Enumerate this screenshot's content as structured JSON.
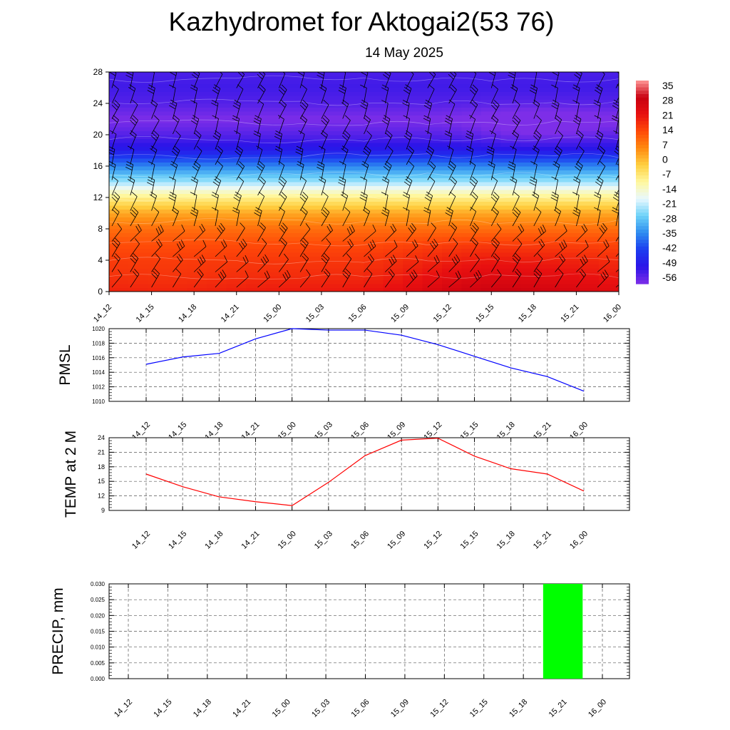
{
  "title": "Kazhydromet for Aktogai2(53 76)",
  "subtitle": "14 May 2025",
  "chart_data": [
    {
      "type": "heatmap",
      "x_ticks": [
        "14_12",
        "14_15",
        "14_18",
        "14_21",
        "15_00",
        "15_03",
        "15_06",
        "15_09",
        "15_12",
        "15_15",
        "15_18",
        "15_21",
        "16_00"
      ],
      "y_ticks": [
        "0",
        "4",
        "8",
        "12",
        "16",
        "20",
        "24",
        "28"
      ],
      "ylim": [
        0,
        28
      ],
      "colorbar": {
        "labels": [
          "35",
          "28",
          "21",
          "14",
          "7",
          "0",
          "-7",
          "-14",
          "-21",
          "-28",
          "-35",
          "-42",
          "-49",
          "-56"
        ],
        "range": [
          -60,
          38
        ],
        "colors": [
          "#7d2ee8",
          "#2a14e8",
          "#1c3cf0",
          "#2e8cf0",
          "#6cd2f8",
          "#e8f8ff",
          "#fff8a0",
          "#ffd040",
          "#ff8a10",
          "#ff4a08",
          "#e81010",
          "#c80010",
          "#ff9898"
        ]
      },
      "temperature_profile": {
        "levels": [
          0,
          2,
          4,
          6,
          8,
          10,
          12,
          13,
          14,
          16,
          18,
          20,
          22,
          24,
          26,
          28
        ],
        "values": [
          22,
          19,
          17,
          14,
          9,
          2,
          -9,
          -16,
          -24,
          -36,
          -50,
          -56,
          -60,
          -56,
          -54,
          -55
        ]
      },
      "wind_barbs": true
    },
    {
      "type": "line",
      "ylabel": "PMSL",
      "x_ticks": [
        "14_12",
        "14_15",
        "14_18",
        "14_21",
        "15_00",
        "15_03",
        "15_06",
        "15_09",
        "15_12",
        "15_15",
        "15_18",
        "15_21",
        "16_00"
      ],
      "y_ticks": [
        "1010",
        "1012",
        "1014",
        "1016",
        "1018",
        "1020"
      ],
      "ylim": [
        1010,
        1020
      ],
      "grid": true,
      "color": "#0000ff",
      "values": [
        1015.1,
        1016.1,
        1016.6,
        1018.6,
        1020.0,
        1019.8,
        1019.8,
        1019.1,
        1017.8,
        1016.2,
        1014.6,
        1013.4,
        1011.4
      ]
    },
    {
      "type": "line",
      "ylabel": "TEMP at 2 M",
      "x_ticks": [
        "14_12",
        "14_15",
        "14_18",
        "14_21",
        "15_00",
        "15_03",
        "15_06",
        "15_09",
        "15_12",
        "15_15",
        "15_18",
        "15_21",
        "16_00"
      ],
      "y_ticks": [
        "9",
        "12",
        "15",
        "18",
        "21",
        "24"
      ],
      "ylim": [
        9,
        24
      ],
      "grid": true,
      "color": "#ff0000",
      "values": [
        16.5,
        13.9,
        11.8,
        10.8,
        10.0,
        14.8,
        20.3,
        23.5,
        23.9,
        20.2,
        17.6,
        16.5,
        13.0
      ]
    },
    {
      "type": "bar",
      "ylabel": "PRECIP, mm",
      "x_ticks": [
        "14_12",
        "14_15",
        "14_18",
        "14_21",
        "15_00",
        "15_03",
        "15_06",
        "15_09",
        "15_12",
        "15_15",
        "15_18",
        "15_21",
        "16_00"
      ],
      "y_ticks": [
        "0.000",
        "0.005",
        "0.010",
        "0.015",
        "0.020",
        "0.025",
        "0.030"
      ],
      "ylim": [
        0,
        0.03
      ],
      "grid": true,
      "color": "#00ff00",
      "values": [
        0,
        0,
        0,
        0,
        0,
        0,
        0,
        0,
        0,
        0,
        0,
        0.03,
        0
      ]
    }
  ]
}
